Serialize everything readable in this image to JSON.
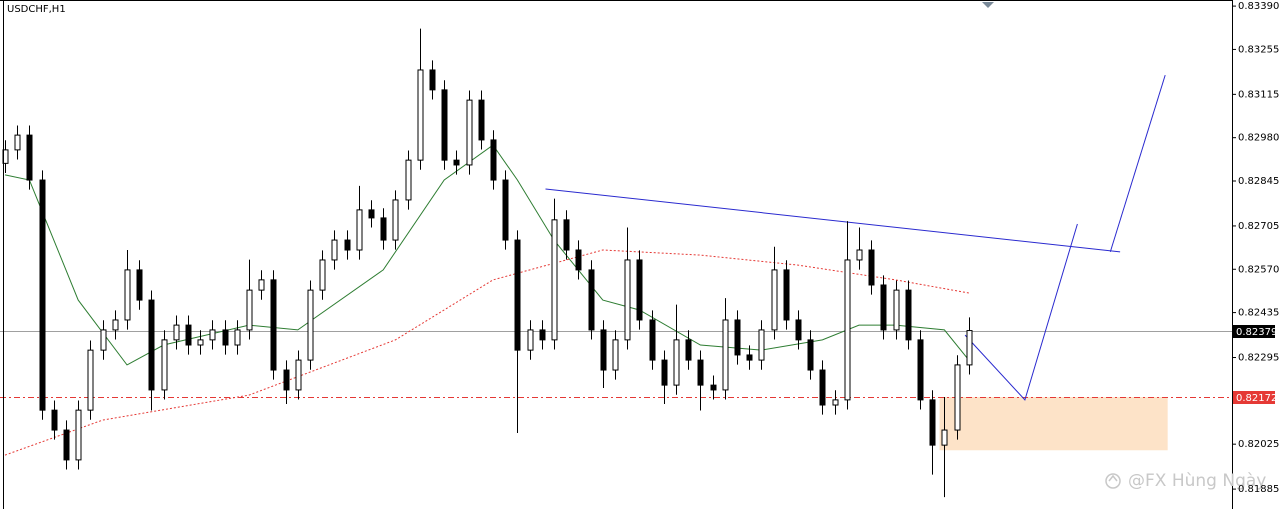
{
  "chart_data": {
    "type": "candlestick",
    "title": "USDCHF,H1",
    "watermark": "@FX Hùng Ngày",
    "ylim": [
      0.81823,
      0.83409
    ],
    "yticks": [
      {
        "value": 0.8339,
        "label": "0.83390"
      },
      0.83255,
      0.83115,
      {
        "value": 0.8298,
        "label": "0.82980"
      },
      0.82845,
      0.82705,
      {
        "value": 0.8257,
        "label": "0.82570"
      },
      0.82435,
      0.82295,
      0.82025,
      0.81885
    ],
    "bull_color": "#ffffff",
    "bear_color": "#000000",
    "open": [
      0.829,
      0.82942,
      0.82988,
      0.82848,
      0.82131,
      0.82069,
      0.81976,
      0.82131,
      0.82318,
      0.82381,
      0.82412,
      0.82568,
      0.82474,
      0.82194,
      0.8235,
      0.82396,
      0.82334,
      0.8235,
      0.82381,
      0.82334,
      0.82381,
      0.82505,
      0.82537,
      0.82256,
      0.82194,
      0.82287,
      0.82505,
      0.82599,
      0.82661,
      0.8263,
      0.82755,
      0.8273,
      0.82661,
      0.82786,
      0.8291,
      0.83191,
      0.83129,
      0.8291,
      0.82895,
      0.83097,
      0.82973,
      0.82848,
      0.82661,
      0.82318,
      0.82381,
      0.8235,
      0.82724,
      0.8263,
      0.82568,
      0.82381,
      0.82256,
      0.8235,
      0.82599,
      0.82412,
      0.82287,
      0.82209,
      0.8235,
      0.82287,
      0.82209,
      0.82194,
      0.82412,
      0.82303,
      0.82287,
      0.82381,
      0.82568,
      0.82412,
      0.8235,
      0.82256,
      0.82147,
      0.82163,
      0.82599,
      0.8263,
      0.82521,
      0.82381,
      0.82505,
      0.8235,
      0.82163,
      0.82022,
      0.82069,
      0.82272
    ],
    "high": [
      0.82972,
      0.83018,
      0.83018,
      0.82878,
      0.82161,
      0.82099,
      0.82161,
      0.82348,
      0.82411,
      0.82442,
      0.8263,
      0.82598,
      0.82504,
      0.8238,
      0.82426,
      0.82426,
      0.8238,
      0.82411,
      0.82411,
      0.82411,
      0.826,
      0.82567,
      0.82567,
      0.82286,
      0.82317,
      0.82535,
      0.82629,
      0.82691,
      0.82691,
      0.8283,
      0.82785,
      0.8276,
      0.82816,
      0.8294,
      0.8332,
      0.83221,
      0.83159,
      0.8294,
      0.83127,
      0.83127,
      0.83003,
      0.82878,
      0.82691,
      0.82411,
      0.82411,
      0.8279,
      0.82754,
      0.8266,
      0.82598,
      0.82411,
      0.8238,
      0.827,
      0.82629,
      0.82442,
      0.82317,
      0.8246,
      0.8238,
      0.82317,
      0.82239,
      0.8248,
      0.82442,
      0.82333,
      0.82411,
      0.8264,
      0.82598,
      0.82442,
      0.8238,
      0.82286,
      0.82193,
      0.8272,
      0.827,
      0.8266,
      0.82551,
      0.82535,
      0.82535,
      0.8238,
      0.82193,
      0.82172,
      0.82302,
      0.8242
    ],
    "low": [
      0.8287,
      0.82912,
      0.82818,
      0.82101,
      0.82039,
      0.81946,
      0.81946,
      0.82101,
      0.82288,
      0.82351,
      0.82382,
      0.82444,
      0.8213,
      0.82164,
      0.8232,
      0.82304,
      0.82304,
      0.8232,
      0.82304,
      0.82304,
      0.82351,
      0.82475,
      0.82226,
      0.8215,
      0.82164,
      0.82257,
      0.82475,
      0.82569,
      0.826,
      0.826,
      0.827,
      0.82631,
      0.82631,
      0.82756,
      0.8288,
      0.83099,
      0.8288,
      0.82865,
      0.82865,
      0.82943,
      0.82818,
      0.82631,
      0.8206,
      0.82288,
      0.8232,
      0.8232,
      0.826,
      0.82538,
      0.82351,
      0.822,
      0.82226,
      0.8232,
      0.82382,
      0.82257,
      0.8215,
      0.82179,
      0.82257,
      0.8213,
      0.82164,
      0.82164,
      0.82273,
      0.82257,
      0.82257,
      0.82351,
      0.82382,
      0.8232,
      0.82226,
      0.82117,
      0.82117,
      0.82133,
      0.82569,
      0.82491,
      0.82351,
      0.82351,
      0.8232,
      0.82133,
      0.8193,
      0.8186,
      0.82039,
      0.82242
    ],
    "close": [
      0.82942,
      0.82988,
      0.82848,
      0.82131,
      0.82069,
      0.81976,
      0.82131,
      0.82318,
      0.82381,
      0.82412,
      0.82568,
      0.82474,
      0.82194,
      0.8235,
      0.82396,
      0.82334,
      0.8235,
      0.82381,
      0.82334,
      0.82381,
      0.82505,
      0.82537,
      0.82256,
      0.82194,
      0.82287,
      0.82505,
      0.82599,
      0.82661,
      0.8263,
      0.82755,
      0.8273,
      0.82661,
      0.82786,
      0.8291,
      0.83191,
      0.83129,
      0.8291,
      0.82895,
      0.83097,
      0.82973,
      0.82848,
      0.82661,
      0.82318,
      0.82381,
      0.8235,
      0.82724,
      0.8263,
      0.82568,
      0.82381,
      0.82256,
      0.8235,
      0.82599,
      0.82412,
      0.82287,
      0.82209,
      0.8235,
      0.82287,
      0.82209,
      0.82194,
      0.82412,
      0.82303,
      0.82287,
      0.82381,
      0.82568,
      0.82412,
      0.8235,
      0.82256,
      0.82147,
      0.82163,
      0.82599,
      0.8263,
      0.82521,
      0.82381,
      0.82505,
      0.8235,
      0.82163,
      0.82022,
      0.82069,
      0.82272,
      0.82379
    ],
    "lines": [
      {
        "color": "#2e7d32",
        "style": "solid",
        "points": [
          [
            0,
            0.82864
          ],
          [
            2,
            0.82848
          ],
          [
            6,
            0.82474
          ],
          [
            10,
            0.82272
          ],
          [
            13,
            0.82334
          ],
          [
            20,
            0.82396
          ],
          [
            24,
            0.82381
          ],
          [
            31,
            0.82568
          ],
          [
            36,
            0.82848
          ],
          [
            40,
            0.82957
          ],
          [
            42,
            0.82848
          ],
          [
            45,
            0.82661
          ],
          [
            49,
            0.82474
          ],
          [
            52,
            0.82443
          ],
          [
            57,
            0.82334
          ],
          [
            62,
            0.82318
          ],
          [
            67,
            0.8235
          ],
          [
            70,
            0.82396
          ],
          [
            73,
            0.82396
          ],
          [
            77,
            0.82381
          ],
          [
            79,
            0.82287
          ]
        ]
      },
      {
        "color": "#e53935",
        "style": "dotted",
        "points": [
          [
            0,
            0.81991
          ],
          [
            8,
            0.821
          ],
          [
            20,
            0.82178
          ],
          [
            32,
            0.8235
          ],
          [
            40,
            0.82537
          ],
          [
            49,
            0.8263
          ],
          [
            57,
            0.82614
          ],
          [
            65,
            0.82583
          ],
          [
            73,
            0.82537
          ],
          [
            79,
            0.82496
          ]
        ]
      },
      {
        "color": "#2a2acf",
        "style": "solid",
        "points": [
          [
            44.3,
            0.8282
          ],
          [
            91.4,
            0.82624
          ]
        ]
      },
      {
        "color": "#2a2acf",
        "style": "solid",
        "points": [
          [
            78.7,
            0.82365
          ],
          [
            83.6,
            0.82163
          ],
          [
            87.9,
            0.82711
          ]
        ]
      },
      {
        "color": "#2a2acf",
        "style": "solid",
        "points": [
          [
            90.6,
            0.82624
          ],
          [
            95.1,
            0.83175
          ]
        ]
      }
    ],
    "zone": {
      "color": "#fde3c8",
      "x": [
        76.6,
        95.3
      ],
      "y": [
        0.82172,
        0.82006
      ]
    },
    "levels": [
      {
        "value": 0.82379,
        "color": "#a0a0a0",
        "label_color": "#000000",
        "style": "solid"
      },
      {
        "value": 0.82172,
        "color": "#e53935",
        "label_color": "#e53935",
        "style": "dashdot"
      }
    ]
  }
}
